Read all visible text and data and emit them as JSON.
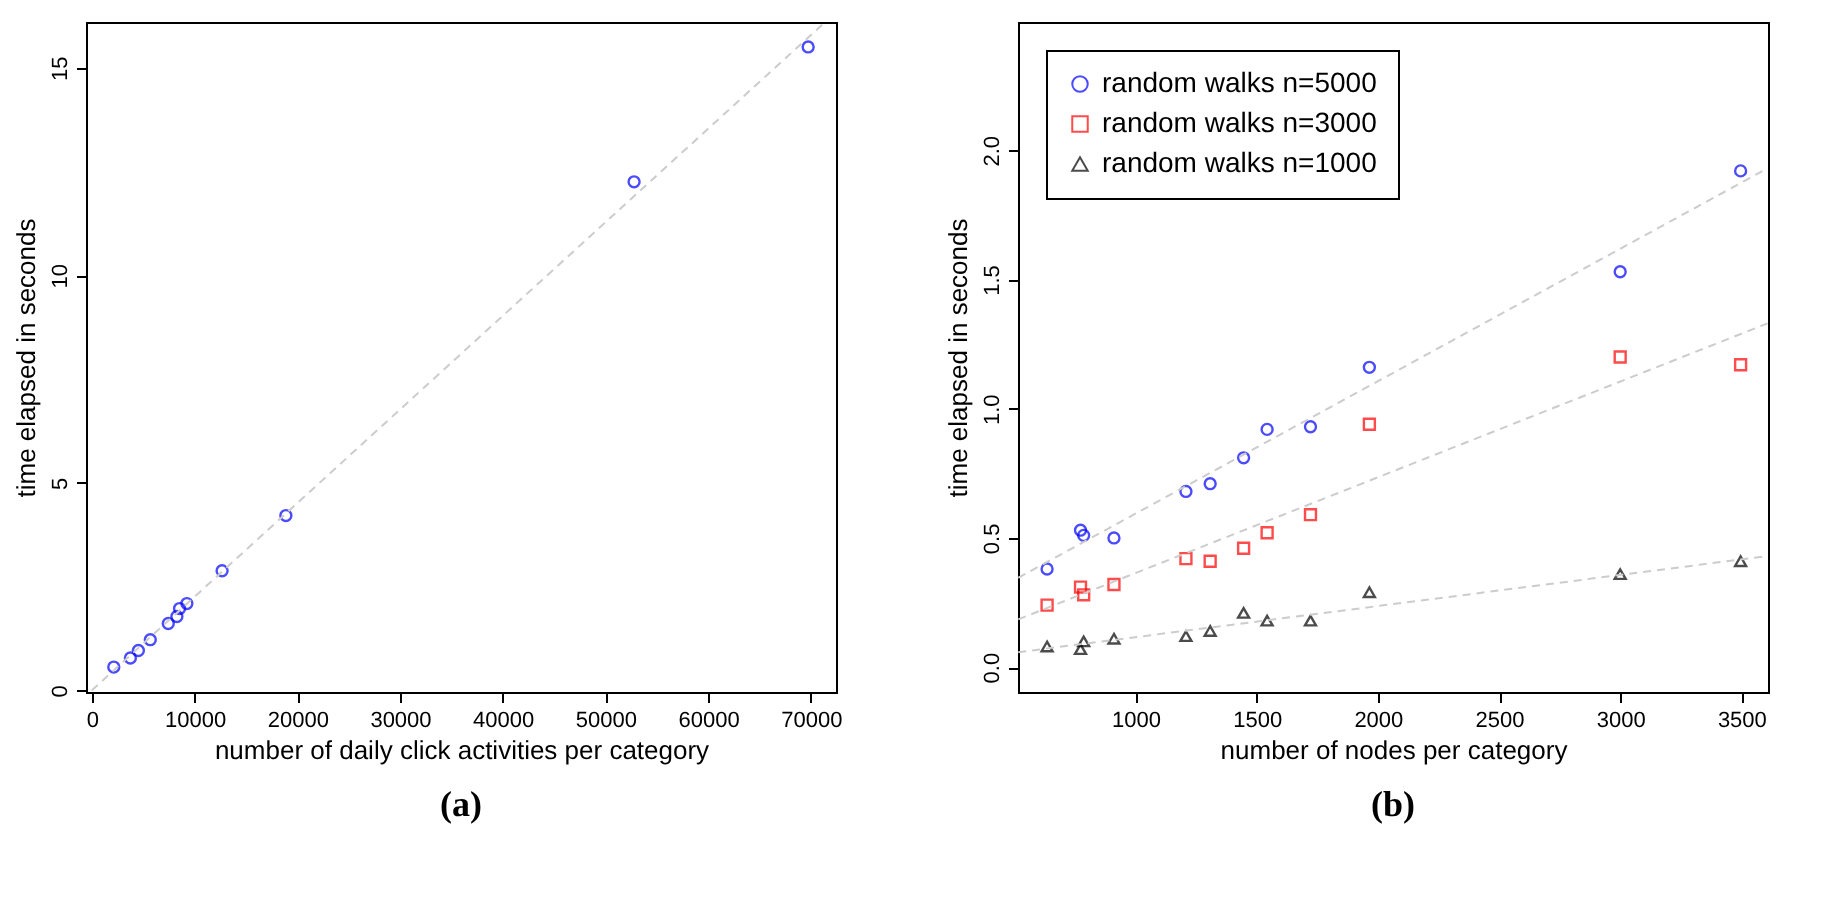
{
  "chart_data": [
    {
      "type": "scatter",
      "title": "(a)",
      "xlabel": "number of daily click activities per category",
      "ylabel": "time elapsed in seconds",
      "xlim": [
        -570,
        72450
      ],
      "ylim": [
        -0.04,
        16.1
      ],
      "xticks": [
        0,
        10000,
        20000,
        30000,
        40000,
        50000,
        60000,
        70000
      ],
      "yticks": [
        0,
        5,
        10,
        15
      ],
      "grid": false,
      "series": [
        {
          "marker": "circle",
          "color": "#0000ff",
          "x": [
            2135,
            3750,
            4530,
            5690,
            7440,
            8280,
            8540,
            9250,
            12680,
            18890,
            52790,
            69740
          ],
          "values": [
            0.56,
            0.78,
            0.96,
            1.22,
            1.61,
            1.78,
            1.97,
            2.09,
            2.88,
            4.21,
            12.25,
            15.5
          ]
        },
        {
          "type": "line",
          "line_style": "dashed",
          "marker": "none",
          "color": "#cccccc",
          "x": [
            0,
            71400
          ],
          "values": [
            0,
            16.1
          ]
        }
      ]
    },
    {
      "type": "scatter",
      "title": "(b)",
      "xlabel": "number of nodes per category",
      "ylabel": "time elapsed in seconds",
      "xlim": [
        515,
        3610
      ],
      "ylim": [
        -0.096,
        2.496
      ],
      "xticks": [
        1000,
        1500,
        2000,
        2500,
        3000,
        3500
      ],
      "yticks": [
        {
          "value": 0,
          "label": "0.0"
        },
        0.5,
        {
          "value": 1,
          "label": "1.0"
        },
        1.5,
        {
          "value": 2,
          "label": "2.0"
        }
      ],
      "grid": false,
      "legend": "top left",
      "series": [
        {
          "name": "random walks n=5000",
          "marker": "circle",
          "color": "#0000ff",
          "x": [
            635,
            773,
            786,
            911,
            1208,
            1308,
            1446,
            1543,
            1722,
            1965,
            3000,
            3497
          ],
          "values": [
            0.38,
            0.53,
            0.51,
            0.5,
            0.68,
            0.71,
            0.81,
            0.92,
            0.93,
            1.16,
            1.53,
            1.92
          ]
        },
        {
          "name": "random walks n=3000",
          "marker": "square",
          "color": "#ff0000",
          "x": [
            635,
            773,
            786,
            911,
            1208,
            1308,
            1446,
            1543,
            1722,
            1965,
            3000,
            3497
          ],
          "values": [
            0.24,
            0.31,
            0.28,
            0.32,
            0.42,
            0.41,
            0.46,
            0.52,
            0.59,
            0.94,
            1.2,
            1.17
          ]
        },
        {
          "name": "random walks n=1000",
          "marker": "triangle",
          "color": "#000000",
          "x": [
            635,
            773,
            786,
            911,
            1208,
            1308,
            1446,
            1543,
            1722,
            1965,
            3000,
            3497
          ],
          "values": [
            0.08,
            0.07,
            0.1,
            0.11,
            0.12,
            0.14,
            0.21,
            0.18,
            0.18,
            0.29,
            0.36,
            0.41
          ]
        },
        {
          "type": "line",
          "line_style": "dashed",
          "marker": "none",
          "color": "#cccccc",
          "x": [
            516,
            3608
          ],
          "values": [
            0.346,
            1.93
          ]
        },
        {
          "type": "line",
          "line_style": "dashed",
          "marker": "none",
          "color": "#cccccc",
          "x": [
            516,
            3608
          ],
          "values": [
            0.185,
            1.33
          ]
        },
        {
          "type": "line",
          "line_style": "dashed",
          "marker": "none",
          "color": "#cccccc",
          "x": [
            516,
            3608
          ],
          "values": [
            0.058,
            0.43
          ]
        }
      ]
    }
  ]
}
